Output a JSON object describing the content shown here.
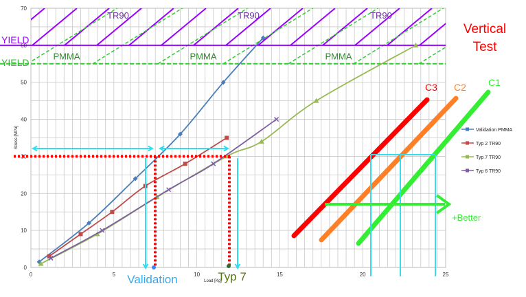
{
  "chart_data": {
    "type": "line",
    "xlabel": "Load [Kg]",
    "ylabel": "Stress [MPa]",
    "xlim": [
      0,
      25
    ],
    "ylim": [
      0,
      70
    ],
    "x_ticks": [
      0,
      5,
      10,
      15,
      20,
      25
    ],
    "y_ticks": [
      0,
      10,
      20,
      30,
      40,
      50,
      60,
      70
    ],
    "grid": true,
    "legend_position": "right",
    "series": [
      {
        "name": "Validation PMMA",
        "color": "#4a7ebb",
        "marker": "diamond",
        "x": [
          0.5,
          3.5,
          6.3,
          9.0,
          11.6,
          14.0
        ],
        "y": [
          1.5,
          12,
          24,
          36,
          50,
          62
        ]
      },
      {
        "name": "Typ 2 TR90",
        "color": "#be4b48",
        "marker": "square",
        "x": [
          1.1,
          3.0,
          4.9,
          6.9,
          9.3,
          11.8
        ],
        "y": [
          3,
          9,
          15,
          22,
          28,
          35
        ]
      },
      {
        "name": "Typ 7 TR90",
        "color": "#98b954",
        "marker": "triangle",
        "x": [
          0.6,
          4.0,
          7.6,
          11.8,
          13.9,
          17.2,
          23.2
        ],
        "y": [
          1,
          9,
          19,
          30,
          34,
          45,
          60
        ]
      },
      {
        "name": "Typ 6 TR90",
        "color": "#7d60a0",
        "marker": "x",
        "x": [
          1.2,
          4.3,
          8.3,
          11.0,
          14.8
        ],
        "y": [
          2.5,
          10,
          21,
          28,
          40
        ]
      }
    ],
    "reference_lines": [
      {
        "label": "YIELD",
        "y": 60,
        "color": "#9900ff",
        "style": "solid"
      },
      {
        "label": "YIELD",
        "y": 55,
        "color": "#33cc33",
        "style": "dashed"
      }
    ],
    "hatched_bands": [
      {
        "y_range": [
          60,
          70
        ],
        "color": "#9900ff",
        "style": "solid",
        "labels": [
          "TR90",
          "TR90",
          "TR90"
        ]
      },
      {
        "y_range": [
          55,
          60
        ],
        "color": "#33cc33",
        "style": "dashed",
        "labels": [
          "PMMA",
          "PMMA",
          "PMMA"
        ]
      }
    ],
    "stress_level_marker": {
      "y": 30
    },
    "marker_labels": {
      "validation": "Validation",
      "typ7": "Typ 7"
    },
    "test_label": [
      "Vertical",
      "Test"
    ],
    "diagram": {
      "lines": [
        {
          "label": "C3",
          "color": "#ff0000"
        },
        {
          "label": "C2",
          "color": "#ff7f27"
        },
        {
          "label": "C1",
          "color": "#33ee33"
        }
      ],
      "arrow_label": "+Better"
    },
    "colors": {
      "hatch_purple": "#9900ff",
      "hatch_green": "#33cc33",
      "dotted_red": "#ff0000",
      "cyan": "#33ddee",
      "test_label_red": "#ff0000"
    }
  }
}
